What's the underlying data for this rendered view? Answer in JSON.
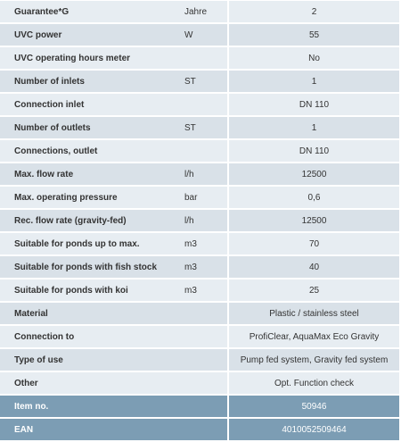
{
  "rows": [
    {
      "label": "Guarantee*G",
      "unit": "Jahre",
      "value": "2"
    },
    {
      "label": "UVC power",
      "unit": "W",
      "value": "55"
    },
    {
      "label": "UVC operating hours meter",
      "unit": "",
      "value": "No"
    },
    {
      "label": "Number of inlets",
      "unit": "ST",
      "value": "1"
    },
    {
      "label": "Connection inlet",
      "unit": "",
      "value": "DN 110"
    },
    {
      "label": "Number of outlets",
      "unit": "ST",
      "value": "1"
    },
    {
      "label": "Connections, outlet",
      "unit": "",
      "value": "DN 110"
    },
    {
      "label": "Max. flow rate",
      "unit": "l/h",
      "value": "12500"
    },
    {
      "label": "Max. operating pressure",
      "unit": "bar",
      "value": "0,6"
    },
    {
      "label": "Rec. flow rate (gravity-fed)",
      "unit": "l/h",
      "value": "12500"
    },
    {
      "label": "Suitable for ponds up to max.",
      "unit": "m3",
      "value": "70"
    },
    {
      "label": "Suitable for ponds with fish stock",
      "unit": "m3",
      "value": "40"
    },
    {
      "label": "Suitable for ponds with koi",
      "unit": "m3",
      "value": "25"
    },
    {
      "label": "Material",
      "unit": "",
      "value": "Plastic / stainless steel"
    },
    {
      "label": "Connection to",
      "unit": "",
      "value": "ProfiClear, AquaMax Eco Gravity"
    },
    {
      "label": "Type of use",
      "unit": "",
      "value": "Pump fed system, Gravity fed system"
    },
    {
      "label": "Other",
      "unit": "",
      "value": "Opt. Function check"
    },
    {
      "label": "Item no.",
      "unit": "",
      "value": "50946"
    },
    {
      "label": "EAN",
      "unit": "",
      "value": "4010052509464"
    }
  ],
  "colors": {
    "row_light": "#e7edf2",
    "row_dark": "#d9e1e8",
    "highlight": "#7c9db4",
    "text": "#333333"
  }
}
